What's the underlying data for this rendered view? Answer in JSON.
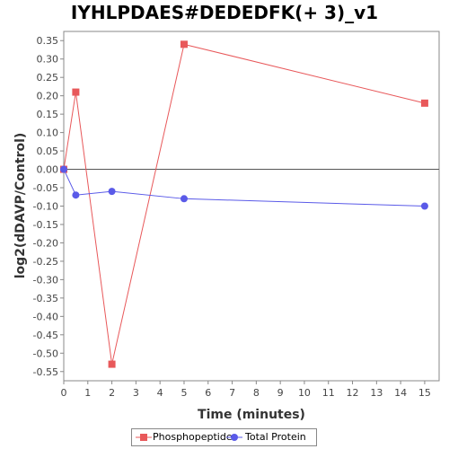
{
  "chart_data": {
    "type": "line",
    "title": "IYHLPDAES#DEDEDFK(+ 3)_v1",
    "xlabel": "Time (minutes)",
    "ylabel": "log2(dDAVP/Control)",
    "xlim": [
      0,
      15.6
    ],
    "ylim": [
      -0.575,
      0.375
    ],
    "xticks": [
      0,
      1,
      2,
      3,
      4,
      5,
      6,
      7,
      8,
      9,
      10,
      11,
      12,
      13,
      14,
      15
    ],
    "yticks": [
      0.35,
      0.3,
      0.25,
      0.2,
      0.15,
      0.1,
      0.05,
      0.0,
      -0.05,
      -0.1,
      -0.15,
      -0.2,
      -0.25,
      -0.3,
      -0.35,
      -0.4,
      -0.45,
      -0.5,
      -0.55
    ],
    "zero_line": true,
    "grid": false,
    "legend_position": "bottom",
    "series": [
      {
        "name": "Phosphopeptide",
        "color": "#e8585a",
        "marker": "square",
        "x": [
          0,
          0.5,
          2,
          5,
          15
        ],
        "y": [
          0.0,
          0.21,
          -0.53,
          0.34,
          0.18
        ]
      },
      {
        "name": "Total Protein",
        "color": "#5a5ae8",
        "marker": "circle",
        "x": [
          0,
          0.5,
          2,
          5,
          15
        ],
        "y": [
          0.0,
          -0.07,
          -0.06,
          -0.08,
          -0.1
        ]
      }
    ]
  }
}
